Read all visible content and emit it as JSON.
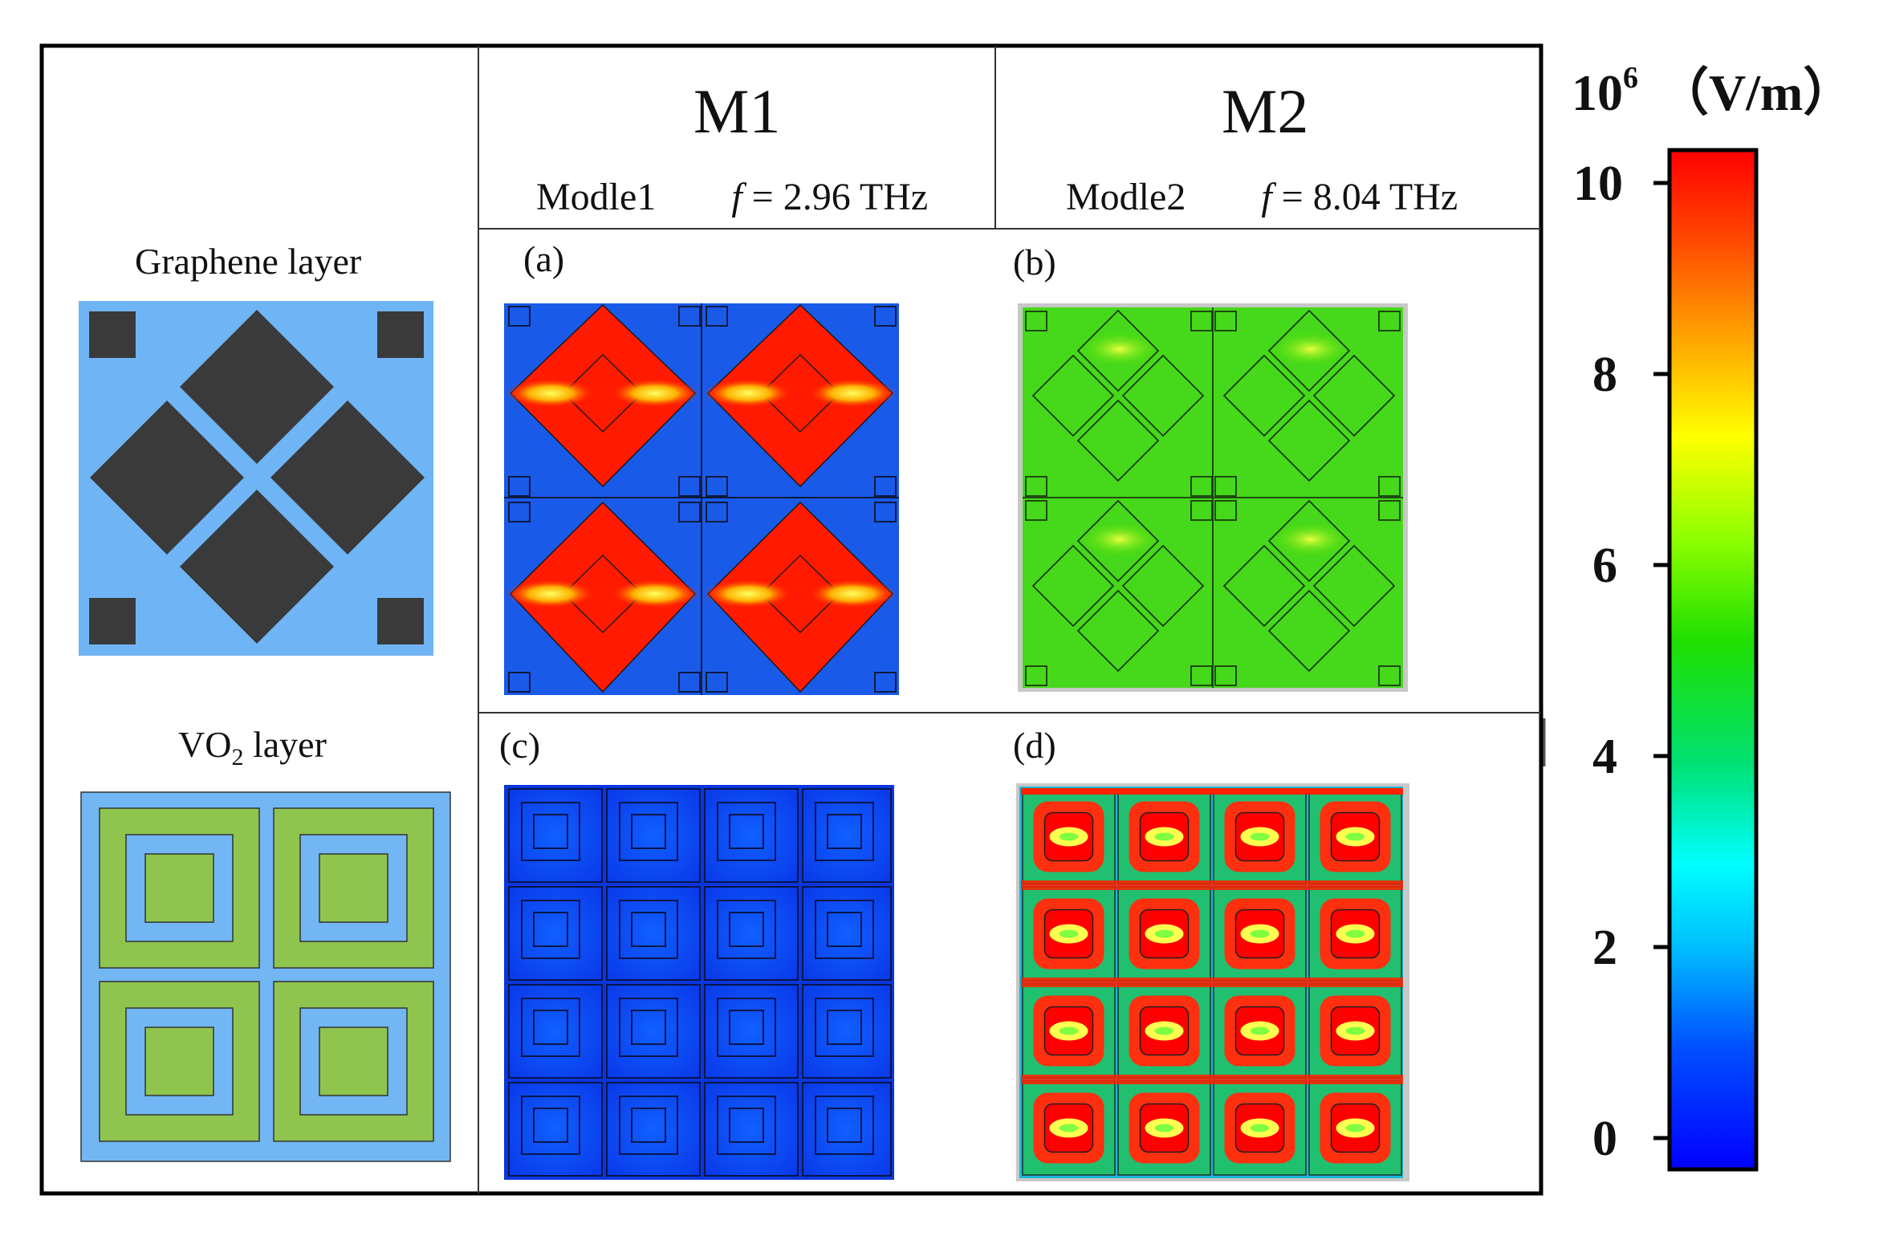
{
  "columns": [
    {
      "title": "M1",
      "model": "Modle1",
      "freq_symbol": "f",
      "freq_value": "= 2.96 THz"
    },
    {
      "title": "M2",
      "model": "Modle2",
      "freq_symbol": "f",
      "freq_value": "= 8.04 THz"
    }
  ],
  "layers": {
    "graphene": "Graphene layer",
    "vo2_prefix": "VO",
    "vo2_sub": "2",
    "vo2_suffix": " layer"
  },
  "panels": [
    "(a)",
    "(b)",
    "(c)",
    "(d)"
  ],
  "colorbar": {
    "base": "10",
    "exponent": "6",
    "unit": "（V/m）",
    "ticks": [
      "10",
      "8",
      "6",
      "4",
      "2",
      "0"
    ],
    "range": [
      0,
      10
    ],
    "colormap": [
      "#0000ff",
      "#0064ff",
      "#00c8ff",
      "#00ffc8",
      "#32ff00",
      "#96ff00",
      "#ffff00",
      "#ffb400",
      "#ff5000",
      "#ff0000"
    ]
  },
  "colors": {
    "graphene_bg": "#6fb5f6",
    "graphene_patch": "#3a3a3a",
    "vo2_bg": "#72b7f4",
    "vo2_patch": "#8fc54f",
    "field_m1_graphene": "red-lobes-on-blue",
    "field_m2_graphene": "uniform-green",
    "field_m1_vo2": "uniform-blue",
    "field_m2_vo2": "red-rings-on-cyan"
  }
}
